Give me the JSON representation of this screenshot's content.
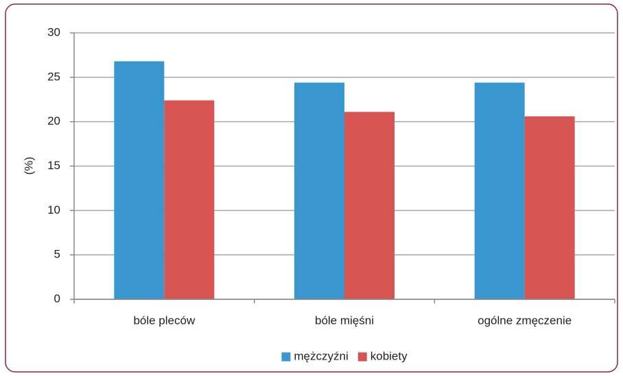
{
  "chart_data": {
    "type": "bar",
    "y_label": "(%)",
    "categories": [
      "bóle pleców",
      "bóle mięśni",
      "ogólne zmęczenie"
    ],
    "series": [
      {
        "name": "mężczyźni",
        "color": "#3a96cf",
        "values": [
          26.8,
          24.4,
          24.4
        ]
      },
      {
        "name": "kobiety",
        "color": "#d65553",
        "values": [
          22.4,
          21.1,
          20.6
        ]
      }
    ],
    "ylim": [
      0,
      30
    ],
    "yticks": [
      0,
      5,
      10,
      15,
      20,
      25,
      30
    ],
    "grid": true,
    "legend": "bottom"
  }
}
